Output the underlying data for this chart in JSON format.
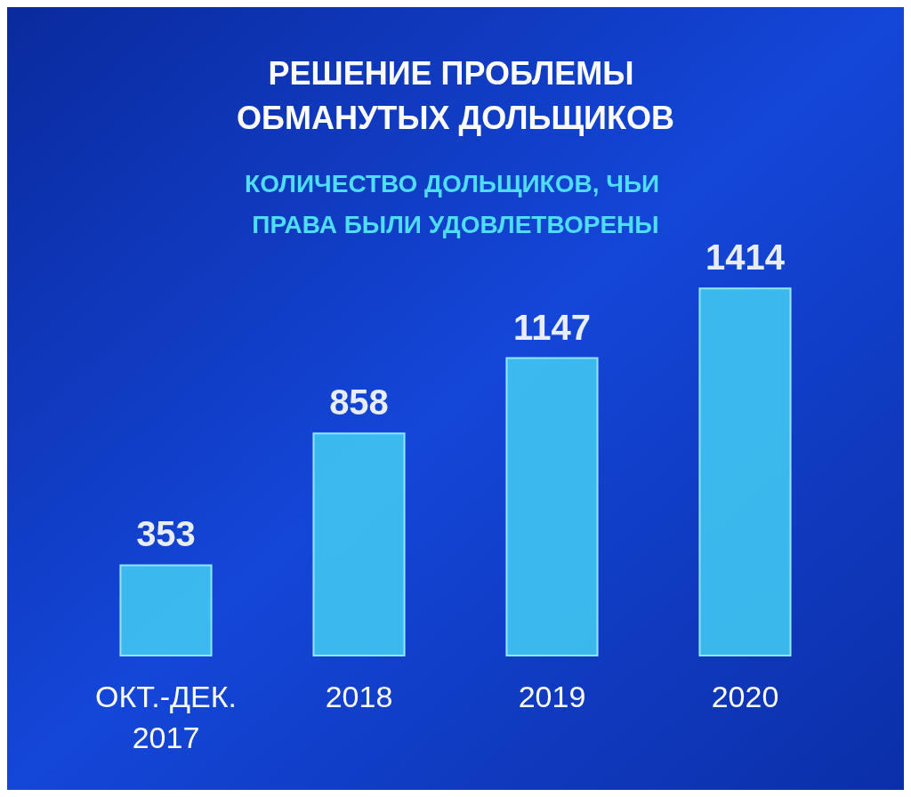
{
  "chart_data": {
    "type": "bar",
    "title": "РЕШЕНИЕ ПРОБЛЕМЫ ОБМАНУТЫХ ДОЛЬЩИКОВ",
    "subtitle": "КОЛИЧЕСТВО ДОЛЬЩИКОВ, ЧЬИ ПРАВА БЫЛИ УДОВЛЕТВОРЕНЫ",
    "categories": [
      "ОКТ.-ДЕК. 2017",
      "2018",
      "2019",
      "2020"
    ],
    "values": [
      353,
      858,
      1147,
      1414
    ],
    "color": "#3fc6f2",
    "data_labels": true
  }
}
